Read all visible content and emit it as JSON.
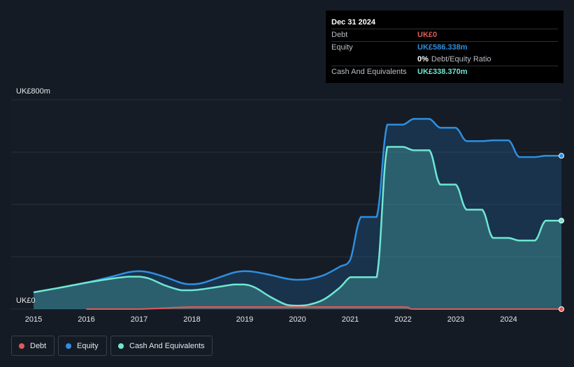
{
  "tooltip": {
    "date": "Dec 31 2024",
    "debt_label": "Debt",
    "debt_value": "UK£0",
    "equity_label": "Equity",
    "equity_value": "UK£586.338m",
    "ratio_value": "0%",
    "ratio_label": "Debt/Equity Ratio",
    "cash_label": "Cash And Equivalents",
    "cash_value": "UK£338.370m"
  },
  "colors": {
    "debt": "#e05a5a",
    "equity": "#2e8fe0",
    "cash": "#6ee8d2",
    "background": "#151b24"
  },
  "legend": [
    {
      "key": "debt",
      "label": "Debt",
      "color": "#e05a5a"
    },
    {
      "key": "equity",
      "label": "Equity",
      "color": "#2e8fe0"
    },
    {
      "key": "cash",
      "label": "Cash And Equivalents",
      "color": "#6ee8d2"
    }
  ],
  "chart_data": {
    "type": "area",
    "y_top_label": "UK£800m",
    "y_bottom_label": "UK£0",
    "ylim": [
      0,
      800
    ],
    "xlim": [
      2015.0,
      2025.0
    ],
    "x_ticks": [
      "2015",
      "2016",
      "2017",
      "2018",
      "2019",
      "2020",
      "2021",
      "2022",
      "2023",
      "2024"
    ],
    "grid": true,
    "series": [
      {
        "name": "Equity",
        "key": "equity",
        "points": [
          [
            2015.0,
            64
          ],
          [
            2015.5,
            82
          ],
          [
            2016.0,
            101
          ],
          [
            2016.5,
            125
          ],
          [
            2016.8,
            141
          ],
          [
            2017.0,
            145
          ],
          [
            2017.2,
            140
          ],
          [
            2017.5,
            122
          ],
          [
            2017.8,
            100
          ],
          [
            2018.0,
            95
          ],
          [
            2018.2,
            100
          ],
          [
            2018.5,
            120
          ],
          [
            2018.8,
            140
          ],
          [
            2019.0,
            145
          ],
          [
            2019.2,
            142
          ],
          [
            2019.5,
            130
          ],
          [
            2019.8,
            116
          ],
          [
            2020.0,
            112
          ],
          [
            2020.2,
            114
          ],
          [
            2020.5,
            130
          ],
          [
            2020.8,
            162
          ],
          [
            2021.0,
            189
          ],
          [
            2021.2,
            352
          ],
          [
            2021.5,
            352
          ],
          [
            2021.7,
            705
          ],
          [
            2022.0,
            705
          ],
          [
            2022.2,
            727
          ],
          [
            2022.5,
            727
          ],
          [
            2022.7,
            693
          ],
          [
            2023.0,
            693
          ],
          [
            2023.2,
            642
          ],
          [
            2023.5,
            642
          ],
          [
            2023.7,
            645
          ],
          [
            2024.0,
            645
          ],
          [
            2024.2,
            581
          ],
          [
            2024.5,
            581
          ],
          [
            2024.7,
            586
          ],
          [
            2025.0,
            586
          ]
        ]
      },
      {
        "name": "Cash And Equivalents",
        "key": "cash",
        "points": [
          [
            2015.0,
            64
          ],
          [
            2015.5,
            82
          ],
          [
            2016.0,
            101
          ],
          [
            2016.5,
            117
          ],
          [
            2016.8,
            124
          ],
          [
            2017.0,
            124
          ],
          [
            2017.2,
            116
          ],
          [
            2017.5,
            90
          ],
          [
            2017.8,
            72
          ],
          [
            2018.0,
            72
          ],
          [
            2018.2,
            76
          ],
          [
            2018.5,
            85
          ],
          [
            2018.8,
            94
          ],
          [
            2019.0,
            94
          ],
          [
            2019.2,
            82
          ],
          [
            2019.5,
            45
          ],
          [
            2019.8,
            16
          ],
          [
            2020.0,
            13
          ],
          [
            2020.2,
            16
          ],
          [
            2020.5,
            37
          ],
          [
            2020.8,
            82
          ],
          [
            2021.0,
            122
          ],
          [
            2021.2,
            122
          ],
          [
            2021.5,
            122
          ],
          [
            2021.7,
            620
          ],
          [
            2022.0,
            620
          ],
          [
            2022.2,
            607
          ],
          [
            2022.5,
            607
          ],
          [
            2022.7,
            476
          ],
          [
            2023.0,
            476
          ],
          [
            2023.2,
            380
          ],
          [
            2023.5,
            380
          ],
          [
            2023.7,
            272
          ],
          [
            2024.0,
            272
          ],
          [
            2024.2,
            262
          ],
          [
            2024.5,
            262
          ],
          [
            2024.7,
            338
          ],
          [
            2025.0,
            338
          ]
        ]
      },
      {
        "name": "Debt",
        "key": "debt",
        "points": [
          [
            2016.0,
            0
          ],
          [
            2017.0,
            0
          ],
          [
            2018.0,
            8
          ],
          [
            2019.0,
            8
          ],
          [
            2020.0,
            8
          ],
          [
            2021.0,
            8
          ],
          [
            2022.0,
            8
          ],
          [
            2022.2,
            0
          ],
          [
            2023.0,
            0
          ],
          [
            2024.0,
            0
          ],
          [
            2025.0,
            0
          ]
        ]
      }
    ]
  }
}
